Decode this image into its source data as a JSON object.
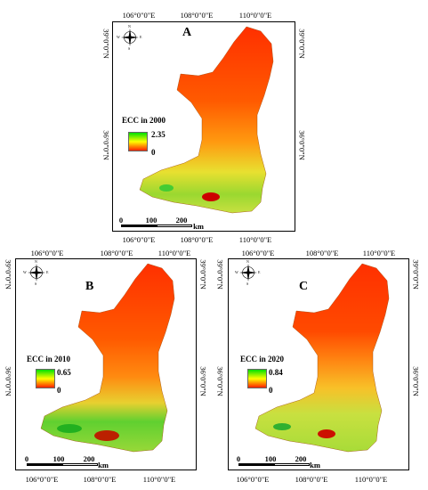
{
  "panels": [
    {
      "id": "A",
      "letter": "A",
      "top_ticks": [
        "106°0\"0\"E",
        "108°0\"0\"E",
        "110°0\"0\"E"
      ],
      "bottom_ticks": [
        "106°0\"0\"E",
        "108°0\"0\"E",
        "110°0\"0\"E"
      ],
      "left_ticks": [
        "39°0\"0\"N",
        "36°0\"0\"N"
      ],
      "right_ticks": [
        "39°0\"0\"N",
        "36°0\"0\"N"
      ],
      "legend_title": "ECC in 2000",
      "legend_max": "2.35",
      "legend_min": "0",
      "scale_labels": [
        "0",
        "100",
        "200",
        "km"
      ]
    },
    {
      "id": "B",
      "letter": "B",
      "top_ticks": [
        "106°0\"0\"E",
        "108°0\"0\"E",
        "110°0\"0\"E"
      ],
      "bottom_ticks": [
        "106°0\"0\"E",
        "108°0\"0\"E",
        "110°0\"0\"E"
      ],
      "left_ticks": [
        "39°0\"0\"N",
        "36°0\"0\"N"
      ],
      "right_ticks": [
        "39°0\"0\"N",
        "36°0\"0\"N"
      ],
      "legend_title": "ECC in 2010",
      "legend_max": "0.65",
      "legend_min": "0",
      "scale_labels": [
        "0",
        "100",
        "200",
        "km"
      ]
    },
    {
      "id": "C",
      "letter": "C",
      "top_ticks": [
        "106°0\"0\"E",
        "108°0\"0\"E",
        "110°0\"0\"E"
      ],
      "bottom_ticks": [
        "106°0\"0\"E",
        "108°0\"0\"E",
        "110°0\"0\"E"
      ],
      "left_ticks": [
        "39°0\"0\"N",
        "36°0\"0\"N"
      ],
      "right_ticks": [
        "39°0\"0\"N",
        "36°0\"0\"N"
      ],
      "legend_title": "ECC in 2020",
      "legend_max": "0.84",
      "legend_min": "0",
      "scale_labels": [
        "0",
        "100",
        "200",
        "km"
      ]
    }
  ],
  "compass_letters": [
    "N",
    "E",
    "S",
    "W"
  ],
  "colors": {
    "low": "#ff2000",
    "mid": "#ffff00",
    "high": "#00e000",
    "frame": "#000000"
  },
  "icons": [
    "compass-rose-icon"
  ]
}
